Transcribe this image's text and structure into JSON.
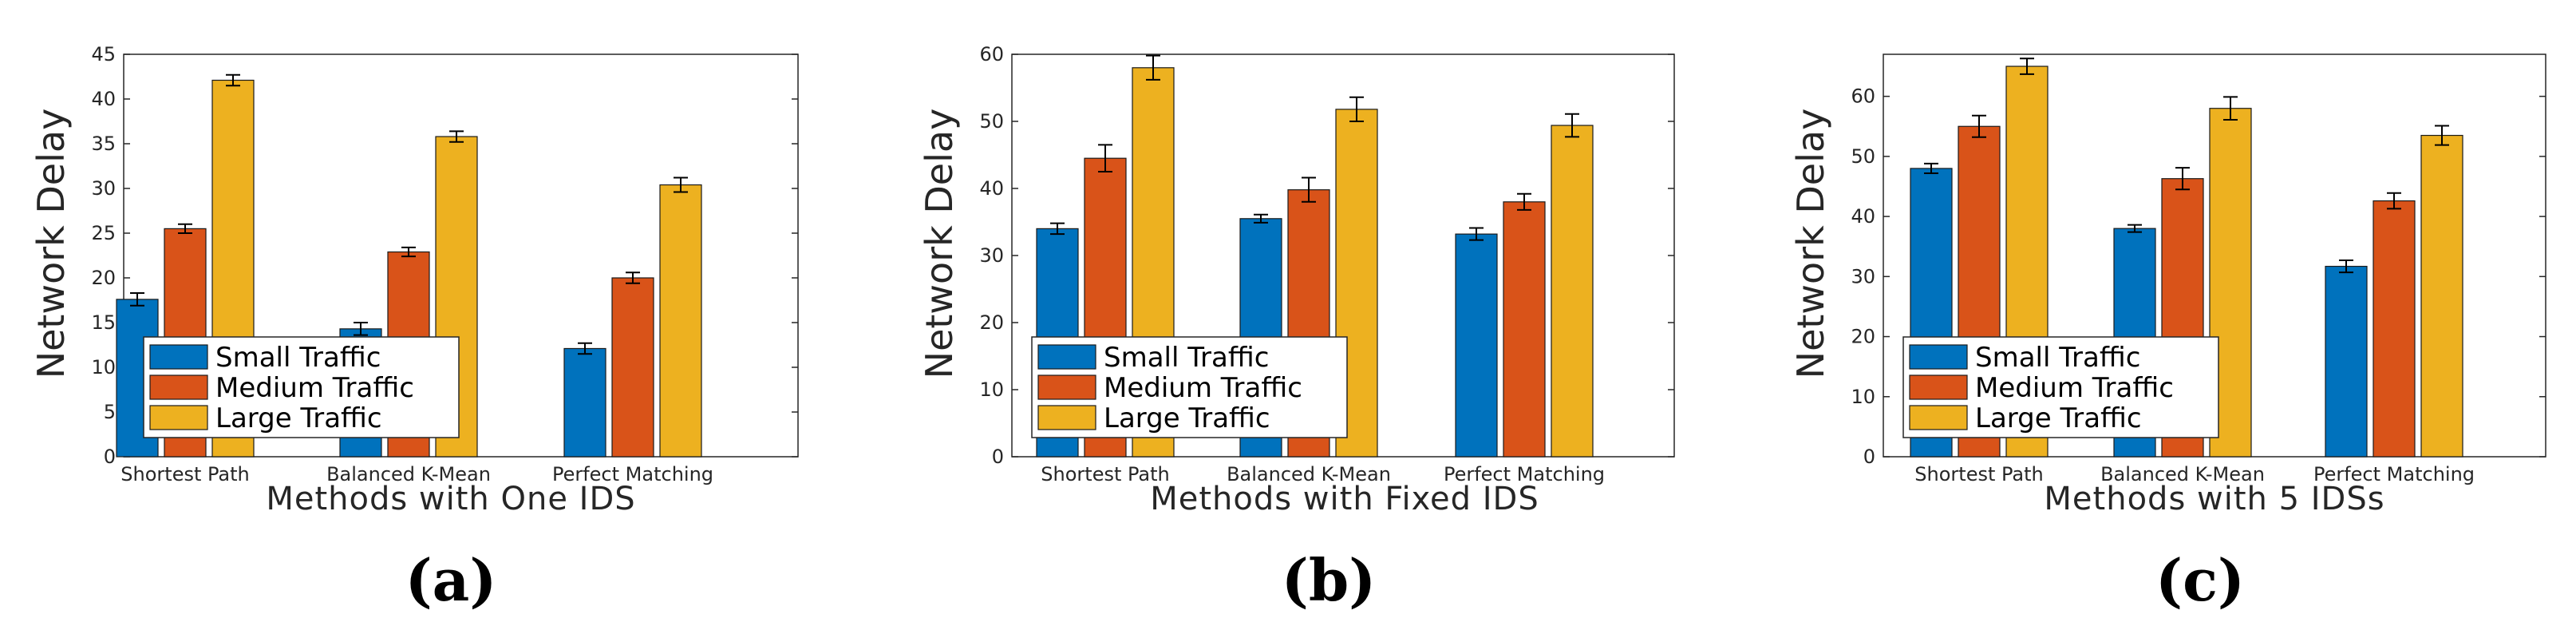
{
  "chart_data": [
    {
      "type": "bar",
      "panel_label": "(a)",
      "categories": [
        "Shortest Path",
        "Balanced K-Mean",
        "Perfect Matching"
      ],
      "series": [
        {
          "name": "Small Traffic",
          "values": [
            17.6,
            14.3,
            12.1
          ],
          "errors": [
            0.7,
            0.7,
            0.6
          ]
        },
        {
          "name": "Medium Traffic",
          "values": [
            25.5,
            22.9,
            20.0
          ],
          "errors": [
            0.5,
            0.5,
            0.6
          ]
        },
        {
          "name": "Large Traffic",
          "values": [
            42.1,
            35.8,
            30.4
          ],
          "errors": [
            0.6,
            0.6,
            0.8
          ]
        }
      ],
      "xlabel": "Methods with One IDS",
      "ylabel": "Network Delay",
      "ylim": [
        0,
        45
      ],
      "yticks": [
        "0",
        "5",
        "10",
        "15",
        "20",
        "25",
        "30",
        "35",
        "40",
        "45"
      ],
      "legend_position": "bottom-left"
    },
    {
      "type": "bar",
      "panel_label": "(b)",
      "categories": [
        "Shortest Path",
        "Balanced K-Mean",
        "Perfect Matching"
      ],
      "series": [
        {
          "name": "Small Traffic",
          "values": [
            34.0,
            35.5,
            33.2
          ],
          "errors": [
            0.8,
            0.6,
            0.9
          ]
        },
        {
          "name": "Medium Traffic",
          "values": [
            44.5,
            39.8,
            38.0
          ],
          "errors": [
            2.0,
            1.8,
            1.2
          ]
        },
        {
          "name": "Large Traffic",
          "values": [
            58.0,
            51.8,
            49.4
          ],
          "errors": [
            1.8,
            1.8,
            1.7
          ]
        }
      ],
      "xlabel": "Methods with Fixed IDS",
      "ylabel": "Network Delay",
      "ylim": [
        0,
        60
      ],
      "yticks": [
        "0",
        "10",
        "20",
        "30",
        "40",
        "50",
        "60"
      ],
      "legend_position": "bottom-left"
    },
    {
      "type": "bar",
      "panel_label": "(c)",
      "categories": [
        "Shortest Path",
        "Balanced K-Mean",
        "Perfect Matching"
      ],
      "series": [
        {
          "name": "Small Traffic",
          "values": [
            48.0,
            38.0,
            31.7
          ],
          "errors": [
            0.8,
            0.6,
            1.0
          ]
        },
        {
          "name": "Medium Traffic",
          "values": [
            55.0,
            46.3,
            42.6
          ],
          "errors": [
            1.8,
            1.8,
            1.3
          ]
        },
        {
          "name": "Large Traffic",
          "values": [
            65.0,
            58.0,
            53.5
          ],
          "errors": [
            1.3,
            1.9,
            1.6
          ]
        }
      ],
      "xlabel": "Methods with 5 IDSs",
      "ylabel": "Network Delay",
      "ylim": [
        0,
        67
      ],
      "yticks": [
        "0",
        "10",
        "20",
        "30",
        "40",
        "50",
        "60"
      ],
      "legend_position": "bottom-left"
    }
  ],
  "colors": {
    "small": "#0072BD",
    "medium": "#D95319",
    "large": "#EDB120",
    "axis": "#262626",
    "error_bar": "#000000"
  }
}
